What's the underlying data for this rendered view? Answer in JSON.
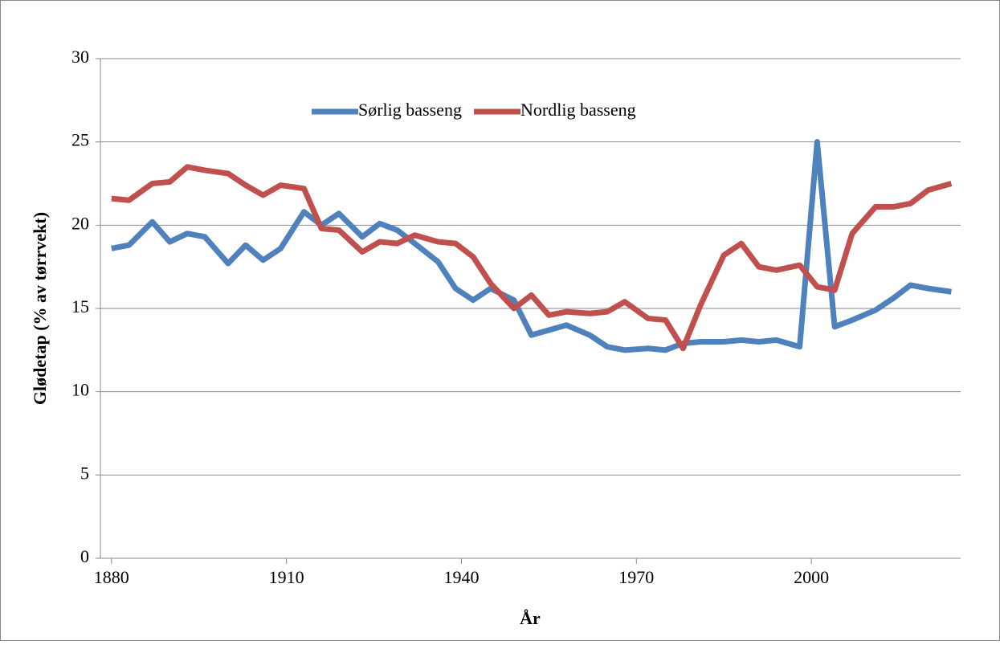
{
  "chart_data": {
    "type": "line",
    "x_label": "År",
    "y_label": "Glødetap (% av tørrvekt)",
    "x": [
      1880,
      1883,
      1887,
      1890,
      1893,
      1896,
      1900,
      1903,
      1906,
      1909,
      1913,
      1916,
      1919,
      1923,
      1926,
      1929,
      1932,
      1936,
      1939,
      1942,
      1945,
      1949,
      1952,
      1955,
      1958,
      1962,
      1965,
      1968,
      1972,
      1975,
      1978,
      1981,
      1985,
      1988,
      1991,
      1994,
      1998,
      2001,
      2004,
      2007,
      2011,
      2014,
      2017,
      2020,
      2024
    ],
    "series": [
      {
        "name": "Sørlig basseng",
        "color": "#4f81bd",
        "values": [
          18.6,
          18.8,
          20.2,
          19.0,
          19.5,
          19.3,
          17.7,
          18.8,
          17.9,
          18.6,
          20.8,
          20.0,
          20.7,
          19.3,
          20.1,
          19.7,
          18.9,
          17.8,
          16.2,
          15.5,
          16.2,
          15.5,
          13.4,
          13.7,
          14.0,
          13.4,
          12.7,
          12.5,
          12.6,
          12.5,
          12.9,
          13.0,
          13.0,
          13.1,
          13.0,
          13.1,
          12.7,
          25.0,
          13.9,
          14.3,
          14.9,
          15.6,
          16.4,
          16.2,
          16.0
        ]
      },
      {
        "name": "Nordlig basseng",
        "color": "#c0504d",
        "values": [
          21.6,
          21.5,
          22.5,
          22.6,
          23.5,
          23.3,
          23.1,
          22.4,
          21.8,
          22.4,
          22.2,
          19.8,
          19.7,
          18.4,
          19.0,
          18.9,
          19.4,
          19.0,
          18.9,
          18.1,
          16.5,
          15.0,
          15.8,
          14.6,
          14.8,
          14.7,
          14.8,
          15.4,
          14.4,
          14.3,
          12.6,
          15.2,
          18.2,
          18.9,
          17.5,
          17.3,
          17.6,
          16.3,
          16.1,
          19.5,
          21.1,
          21.1,
          21.3,
          22.1,
          22.5
        ]
      }
    ],
    "xlim": [
      1878.1,
      2025.6
    ],
    "xticks": [
      1880,
      1910,
      1940,
      1970,
      2000
    ],
    "ylim": [
      0,
      30
    ],
    "yticks": [
      0,
      5,
      10,
      15,
      20,
      25,
      30
    ],
    "grid": true,
    "legend": "top"
  }
}
